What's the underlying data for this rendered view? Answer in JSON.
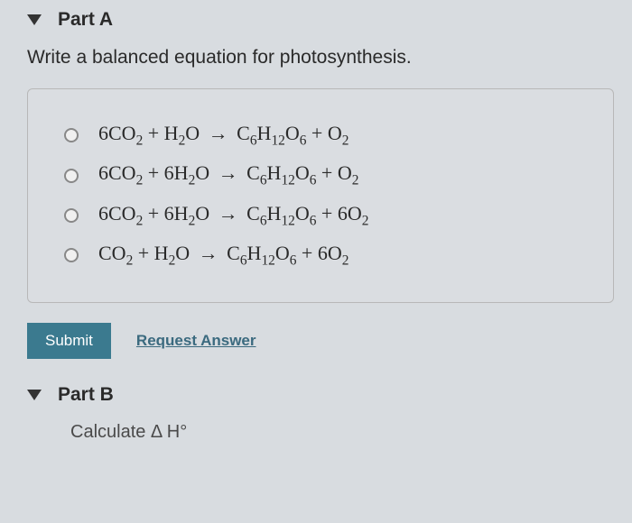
{
  "partA": {
    "title": "Part A",
    "question": "Write a balanced equation for photosynthesis.",
    "options": [
      "6CO₂ + H₂O → C₆H₁₂O₆ + O₂",
      "6CO₂ + 6H₂O → C₆H₁₂O₆ + O₂",
      "6CO₂ + 6H₂O → C₆H₁₂O₆ + 6O₂",
      "CO₂ + H₂O → C₆H₁₂O₆ + 6O₂"
    ],
    "submit_label": "Submit",
    "request_label": "Request Answer"
  },
  "partB": {
    "title": "Part B",
    "partial": "Calculate Δ H°"
  },
  "colors": {
    "background": "#d8dce0",
    "text": "#2a2a2a",
    "border": "#b8b8b8",
    "submit_bg": "#3b7a8f",
    "submit_text": "#ffffff",
    "link": "#3b6a7f"
  }
}
